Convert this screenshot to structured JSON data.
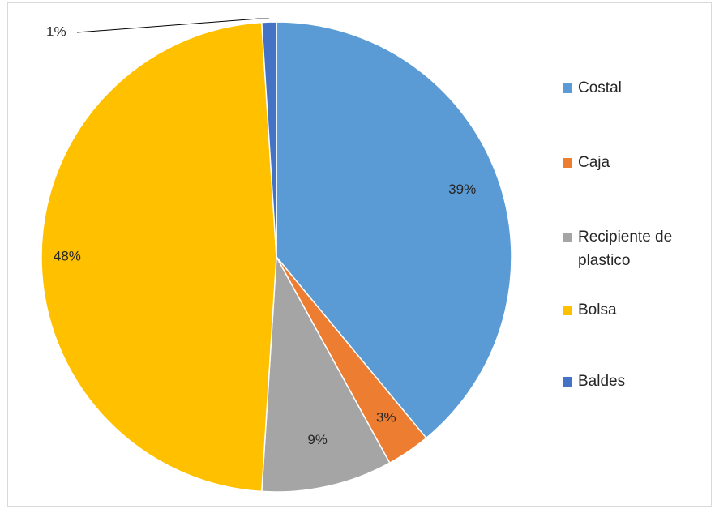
{
  "chart_data": {
    "type": "pie",
    "categories": [
      "Costal",
      "Caja",
      "Recipiente de plastico",
      "Bolsa",
      "Baldes"
    ],
    "values": [
      39,
      3,
      9,
      48,
      1
    ],
    "data_labels": [
      "39%",
      "3%",
      "9%",
      "48%",
      "1%"
    ],
    "legend_labels": [
      [
        "Costal"
      ],
      [
        "Caja"
      ],
      [
        "Recipiente de",
        "plastico"
      ],
      [
        "Bolsa"
      ],
      [
        "Baldes"
      ]
    ],
    "colors": [
      "#5b9bd5",
      "#ed7d31",
      "#a5a5a5",
      "#ffc000",
      "#4472c4"
    ],
    "legend_position": "right",
    "start_angle": "top, clockwise",
    "title": ""
  }
}
